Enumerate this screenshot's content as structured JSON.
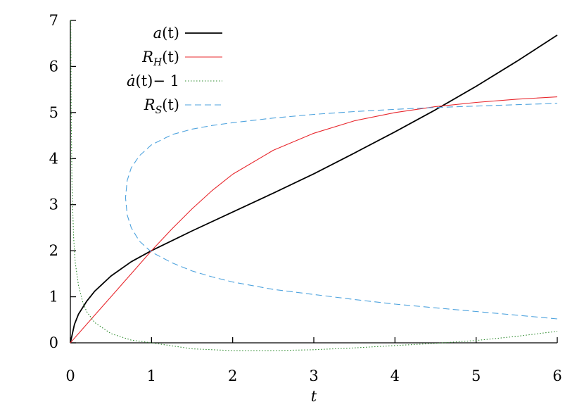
{
  "chart_data": {
    "type": "line",
    "title": "",
    "xlabel": "t",
    "ylabel": "",
    "xlim": [
      0,
      6
    ],
    "ylim": [
      0,
      7
    ],
    "x_ticks": [
      "0",
      "1",
      "2",
      "3",
      "4",
      "5",
      "6"
    ],
    "y_ticks": [
      "0",
      "1",
      "2",
      "3",
      "4",
      "5",
      "6",
      "7"
    ],
    "grid": false,
    "legend_position": "top-left",
    "series": [
      {
        "name": "a(t)",
        "legend_main": "a",
        "legend_sub": "",
        "legend_arg": "(t)",
        "color": "#000000",
        "style": "solid",
        "x": [
          0,
          0.05,
          0.1,
          0.2,
          0.3,
          0.5,
          0.75,
          1.0,
          1.5,
          2.0,
          2.5,
          3.0,
          3.5,
          4.0,
          4.5,
          5.0,
          5.5,
          6.0
        ],
        "y": [
          0,
          0.4,
          0.62,
          0.9,
          1.12,
          1.45,
          1.76,
          2.0,
          2.43,
          2.84,
          3.25,
          3.67,
          4.12,
          4.58,
          5.06,
          5.57,
          6.11,
          6.68
        ]
      },
      {
        "name": "R_H(t)",
        "legend_main": "R",
        "legend_sub": "H",
        "legend_arg": "(t)",
        "color": "#e8282e",
        "style": "solid",
        "x": [
          0,
          0.25,
          0.5,
          0.75,
          1.0,
          1.25,
          1.5,
          1.75,
          2.0,
          2.5,
          3.0,
          3.5,
          4.0,
          4.5,
          5.0,
          5.5,
          6.0
        ],
        "y": [
          0,
          0.5,
          1.0,
          1.5,
          2.0,
          2.47,
          2.91,
          3.31,
          3.66,
          4.18,
          4.55,
          4.82,
          5.0,
          5.13,
          5.22,
          5.29,
          5.34
        ]
      },
      {
        "name": "ȧ(t)− 1",
        "legend_main": "ȧ",
        "legend_sub": "",
        "legend_arg": "(t)− 1",
        "color": "#2e8b2e",
        "style": "dotted",
        "x": [
          0.005,
          0.01,
          0.02,
          0.04,
          0.06,
          0.1,
          0.15,
          0.2,
          0.3,
          0.5,
          0.75,
          1.0,
          1.5,
          2.0,
          2.5,
          3.0,
          3.5,
          4.0,
          4.5,
          5.0,
          5.5,
          6.0
        ],
        "y": [
          7.0,
          5.0,
          3.4,
          2.3,
          1.75,
          1.25,
          0.9,
          0.68,
          0.44,
          0.2,
          0.06,
          0.0,
          -0.13,
          -0.17,
          -0.17,
          -0.15,
          -0.11,
          -0.06,
          -0.01,
          0.05,
          0.14,
          0.25
        ]
      },
      {
        "name": "R_S(t)",
        "legend_main": "R",
        "legend_sub": "S",
        "legend_arg": "(t)",
        "color": "#4ea3de",
        "style": "dashed",
        "x": [
          6.0,
          5.5,
          5.0,
          4.5,
          4.0,
          3.5,
          3.0,
          2.5,
          2.0,
          1.75,
          1.5,
          1.25,
          1.0,
          0.85,
          0.75,
          0.7,
          0.68,
          0.7,
          0.75,
          0.85,
          1.0,
          1.25,
          1.5,
          1.75,
          2.0,
          2.5,
          3.0,
          3.5,
          4.0,
          4.5,
          5.0,
          5.5,
          6.0
        ],
        "y": [
          0.52,
          0.6,
          0.68,
          0.76,
          0.84,
          0.94,
          1.05,
          1.16,
          1.32,
          1.43,
          1.56,
          1.74,
          1.97,
          2.21,
          2.5,
          2.78,
          3.15,
          3.52,
          3.8,
          4.06,
          4.3,
          4.52,
          4.64,
          4.72,
          4.78,
          4.88,
          4.96,
          5.02,
          5.07,
          5.11,
          5.14,
          5.17,
          5.2
        ]
      }
    ]
  }
}
